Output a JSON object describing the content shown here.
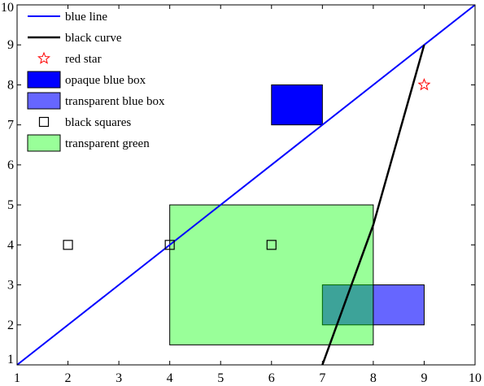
{
  "chart_data": {
    "type": "line",
    "title": "",
    "xlabel": "",
    "ylabel": "",
    "xlim": [
      1,
      10
    ],
    "ylim": [
      1,
      10
    ],
    "xticks": [
      "1",
      "2",
      "3",
      "4",
      "5",
      "6",
      "7",
      "8",
      "9",
      "10"
    ],
    "yticks": [
      "1",
      "2",
      "3",
      "4",
      "5",
      "6",
      "7",
      "8",
      "9",
      "10"
    ],
    "grid": false,
    "legend_position": "top-left",
    "series": [
      {
        "name": "blue line",
        "kind": "line",
        "color": "#0000ff",
        "points": [
          [
            1,
            1
          ],
          [
            10,
            10
          ]
        ]
      },
      {
        "name": "black curve",
        "kind": "curve",
        "color": "#000000",
        "points": [
          [
            7,
            1
          ],
          [
            7.5,
            2.75
          ],
          [
            8,
            4.5
          ],
          [
            8.5,
            6.75
          ],
          [
            9,
            9
          ]
        ]
      },
      {
        "name": "red star",
        "kind": "marker-star",
        "color": "#ff0000",
        "points": [
          [
            9,
            8
          ]
        ]
      },
      {
        "name": "opaque blue box",
        "kind": "rect",
        "fill": "#0000ff",
        "opacity": 1,
        "x": [
          6,
          7
        ],
        "y": [
          7,
          8
        ]
      },
      {
        "name": "transparent blue box",
        "kind": "rect",
        "fill": "#0000ff",
        "opacity": 0.6,
        "x": [
          7,
          9
        ],
        "y": [
          2,
          3
        ]
      },
      {
        "name": "black squares",
        "kind": "marker-square",
        "color": "#000000",
        "points": [
          [
            2,
            4
          ],
          [
            4,
            4
          ],
          [
            6,
            4
          ]
        ]
      },
      {
        "name": "transparent green",
        "kind": "rect",
        "fill": "#00ff00",
        "opacity": 0.4,
        "x": [
          4,
          8
        ],
        "y": [
          1.5,
          5
        ]
      }
    ]
  }
}
